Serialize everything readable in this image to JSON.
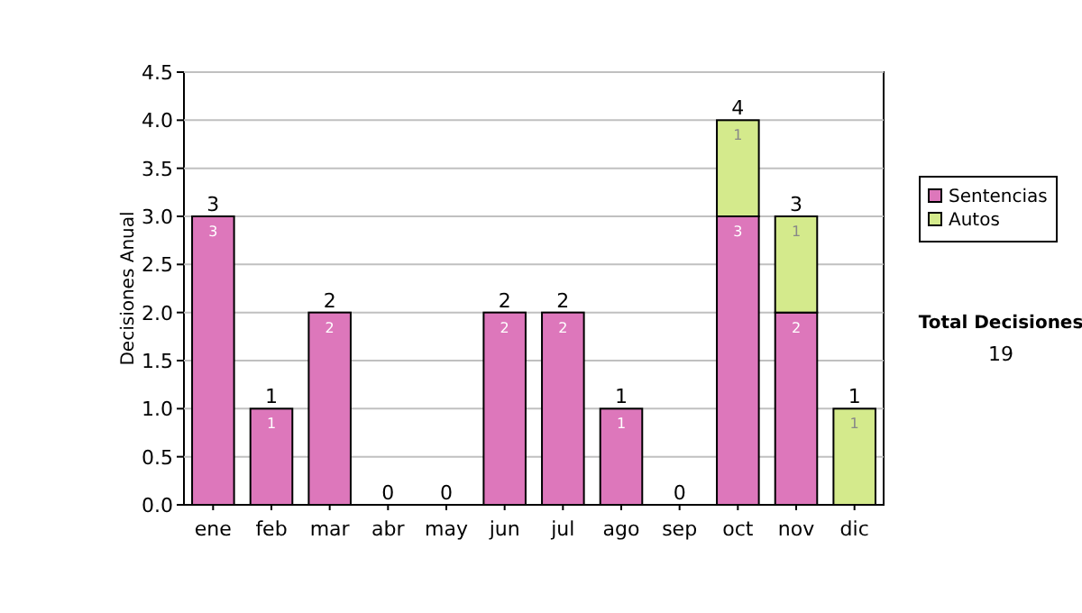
{
  "chart_data": {
    "type": "bar",
    "stacked": true,
    "ylabel": "Decisiones Anual",
    "categories": [
      "ene",
      "feb",
      "mar",
      "abr",
      "may",
      "jun",
      "jul",
      "ago",
      "sep",
      "oct",
      "nov",
      "dic"
    ],
    "series": [
      {
        "name": "Sentencias",
        "color": "#dd77bb",
        "values": [
          3,
          1,
          2,
          0,
          0,
          2,
          2,
          1,
          0,
          3,
          2,
          0
        ],
        "value_labels": [
          "3",
          "1",
          "2",
          null,
          null,
          "2",
          "2",
          "1",
          null,
          "3",
          "2",
          null
        ]
      },
      {
        "name": "Autos",
        "color": "#d4ea8c",
        "values": [
          0,
          0,
          0,
          0,
          0,
          0,
          0,
          0,
          0,
          1,
          1,
          1
        ],
        "value_labels": [
          null,
          null,
          null,
          null,
          null,
          null,
          null,
          null,
          null,
          "1",
          "1",
          "1"
        ]
      }
    ],
    "totals": [
      "3",
      "1",
      "2",
      "0",
      "0",
      "2",
      "2",
      "1",
      "0",
      "4",
      "3",
      "1"
    ],
    "ylim": [
      0,
      4.5
    ],
    "yticks": [
      {
        "value": 0,
        "label": "0.0"
      },
      {
        "value": 0.5,
        "label": "0.5"
      },
      {
        "value": 1,
        "label": "1.0"
      },
      {
        "value": 1.5,
        "label": "1.5"
      },
      {
        "value": 2,
        "label": "2.0"
      },
      {
        "value": 2.5,
        "label": "2.5"
      },
      {
        "value": 3,
        "label": "3.0"
      },
      {
        "value": 3.5,
        "label": "3.5"
      },
      {
        "value": 4,
        "label": "4.0"
      },
      {
        "value": 4.5,
        "label": "4.5"
      }
    ],
    "grid": "y",
    "legend": "right",
    "annotations": [
      "Total Decisiones",
      "19"
    ]
  }
}
